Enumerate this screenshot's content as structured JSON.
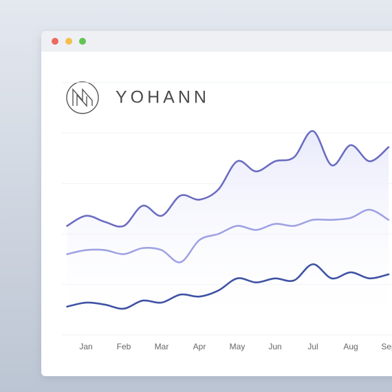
{
  "header": {
    "brand": "YOHANN"
  },
  "chart_data": {
    "type": "line",
    "categories": [
      null,
      "Jan",
      null,
      "Feb",
      null,
      "Mar",
      null,
      "Apr",
      null,
      "May",
      null,
      "Jun",
      null,
      "Jul",
      null,
      "Aug",
      null,
      "Sep"
    ],
    "series": [
      {
        "color": "#6b6cc2",
        "values": [
          54,
          59,
          56,
          54,
          64,
          59,
          69,
          67,
          72,
          86,
          81,
          86,
          88,
          101,
          84,
          94,
          86,
          93
        ]
      },
      {
        "color": "#9fa2e3",
        "values": [
          40,
          42,
          42,
          40,
          43,
          42,
          36,
          47,
          50,
          54,
          52,
          55,
          54,
          57,
          57,
          58,
          62,
          57
        ]
      },
      {
        "color": "#3f52a4",
        "values": [
          14,
          16,
          15,
          13,
          17,
          16,
          20,
          19,
          22,
          28,
          26,
          28,
          27,
          35,
          28,
          31,
          28,
          30
        ]
      }
    ],
    "ylim": [
      0,
      125
    ],
    "grid": true
  }
}
